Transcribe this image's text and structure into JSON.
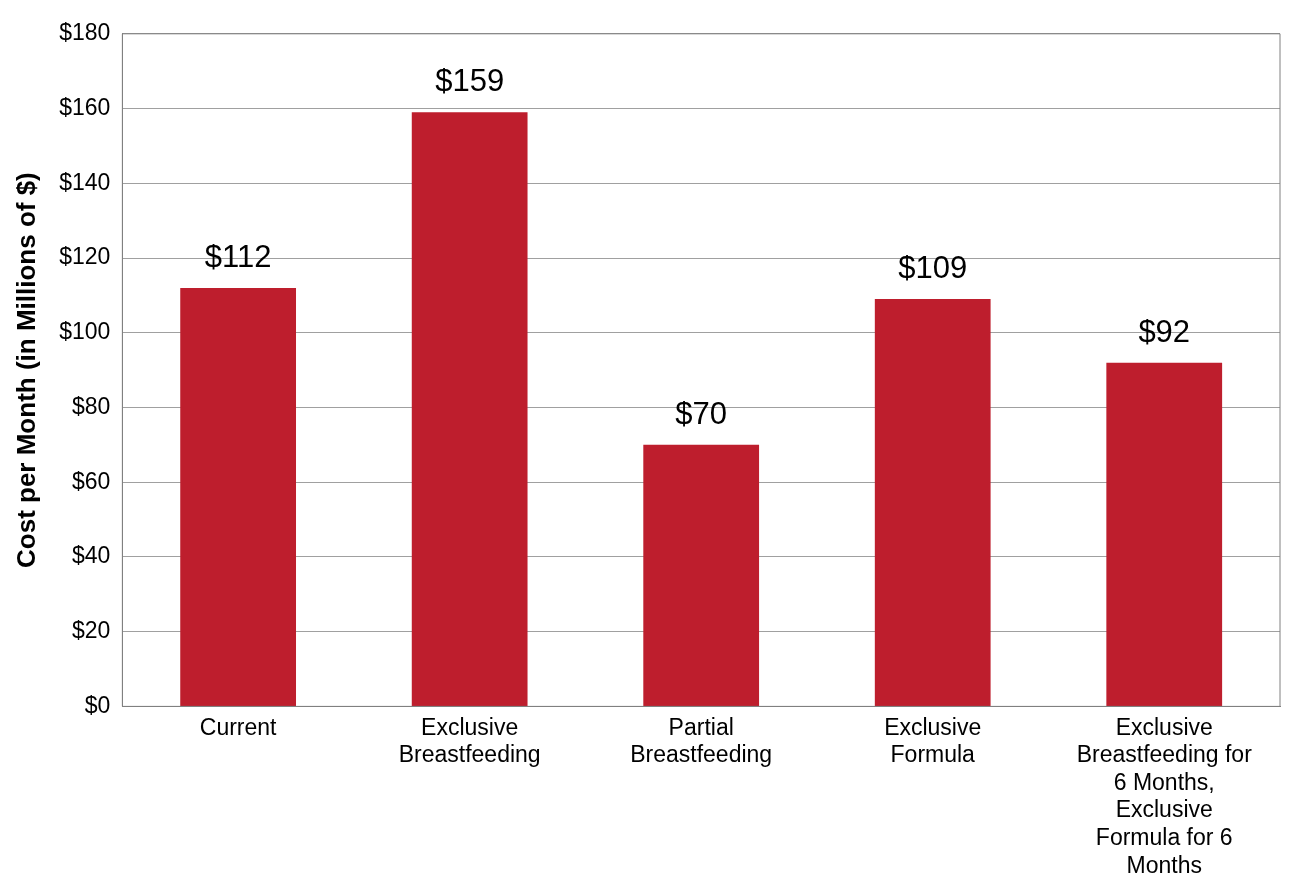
{
  "chart_data": {
    "type": "bar",
    "ylabel": "Cost per Month (in Millions of $)",
    "categories": [
      "Current",
      "Exclusive Breastfeeding",
      "Partial Breastfeeding",
      "Exclusive Formula",
      "Exclusive Breastfeeding for 6 Months, Exclusive Formula for 6 Months"
    ],
    "values": [
      112,
      159,
      70,
      109,
      92
    ],
    "value_labels": [
      "$112",
      "$159",
      "$70",
      "$109",
      "$92"
    ],
    "color": "#be1e2d",
    "ylim": [
      0,
      180
    ],
    "yticks": [
      {
        "value": 0,
        "label": "$0"
      },
      {
        "value": 20,
        "label": "$20"
      },
      {
        "value": 40,
        "label": "$40"
      },
      {
        "value": 60,
        "label": "$60"
      },
      {
        "value": 80,
        "label": "$80"
      },
      {
        "value": 100,
        "label": "$100"
      },
      {
        "value": 120,
        "label": "$120"
      },
      {
        "value": 140,
        "label": "$140"
      },
      {
        "value": 160,
        "label": "$160"
      },
      {
        "value": 180,
        "label": "$180"
      }
    ],
    "grid": "y",
    "legend": false
  }
}
